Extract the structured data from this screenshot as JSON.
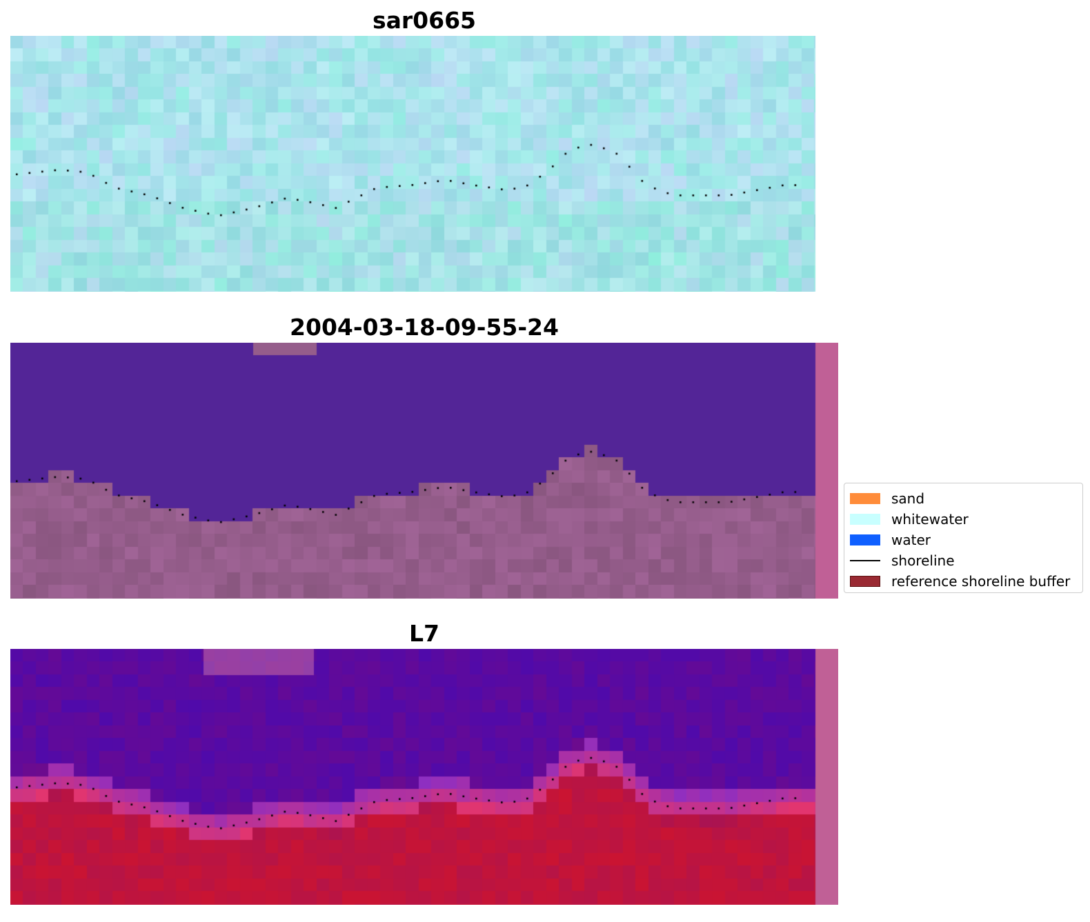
{
  "panels": [
    {
      "title": "sar0665",
      "style": "rgb"
    },
    {
      "title": "2004-03-18-09-55-24",
      "style": "classified"
    },
    {
      "title": "L7",
      "style": "index"
    }
  ],
  "legend": {
    "items": [
      {
        "label": "sand",
        "kind": "patch",
        "color": "#ff8c3a"
      },
      {
        "label": "whitewater",
        "kind": "patch",
        "color": "#c8ffff"
      },
      {
        "label": "water",
        "kind": "patch",
        "color": "#0f5fff"
      },
      {
        "label": "shoreline",
        "kind": "line",
        "color": "#000000"
      },
      {
        "label": "reference shoreline buffer",
        "kind": "patch",
        "color": "#9a2a33"
      }
    ]
  },
  "colors": {
    "rgb_base": "#a9e3ec",
    "water_class": "#532597",
    "land_class": "#955d8b",
    "index_high": "#5a0aa0",
    "index_low": "#c0143c",
    "side_strip": "#c06096",
    "shoreline_dots": "#000000"
  }
}
